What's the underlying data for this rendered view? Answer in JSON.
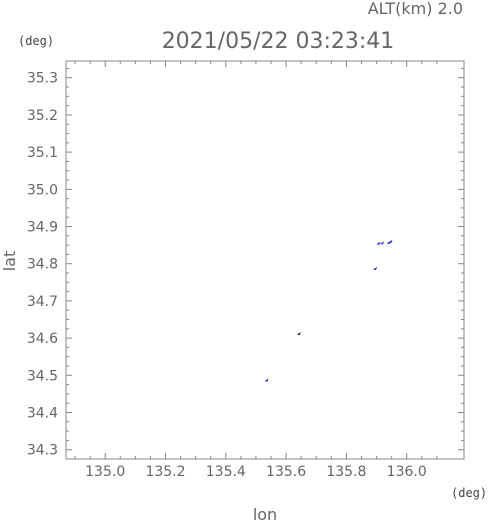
{
  "chart_data": {
    "type": "scatter",
    "title": "2021/05/22 03:23:41",
    "altitude_label": "ALT(km) 2.0",
    "xlabel": "lon",
    "ylabel": "lat",
    "x_unit": "(deg)",
    "y_unit": "(deg)",
    "xlim": [
      134.87,
      136.19
    ],
    "ylim": [
      34.275,
      35.345
    ],
    "x_ticks": [
      "135.0",
      "135.2",
      "135.4",
      "135.6",
      "135.8",
      "136.0"
    ],
    "y_ticks": [
      "34.3",
      "34.4",
      "34.5",
      "34.6",
      "34.7",
      "34.8",
      "34.9",
      "35.0",
      "35.1",
      "35.2",
      "35.3"
    ],
    "colors": {
      "frame": "#888888",
      "marker_blue": "#2222dd",
      "marker_dark": "#222222"
    },
    "points": [
      {
        "lon": 135.535,
        "lat": 34.487,
        "color": "#2222dd"
      },
      {
        "lon": 135.642,
        "lat": 34.612,
        "color": "#222222"
      },
      {
        "lon": 135.895,
        "lat": 34.787,
        "color": "#2222dd"
      },
      {
        "lon": 135.906,
        "lat": 34.855,
        "color": "#2222dd"
      },
      {
        "lon": 135.918,
        "lat": 34.856,
        "color": "#2222dd"
      },
      {
        "lon": 135.94,
        "lat": 34.857,
        "color": "#2222dd"
      },
      {
        "lon": 135.946,
        "lat": 34.86,
        "color": "#2222dd"
      }
    ]
  }
}
